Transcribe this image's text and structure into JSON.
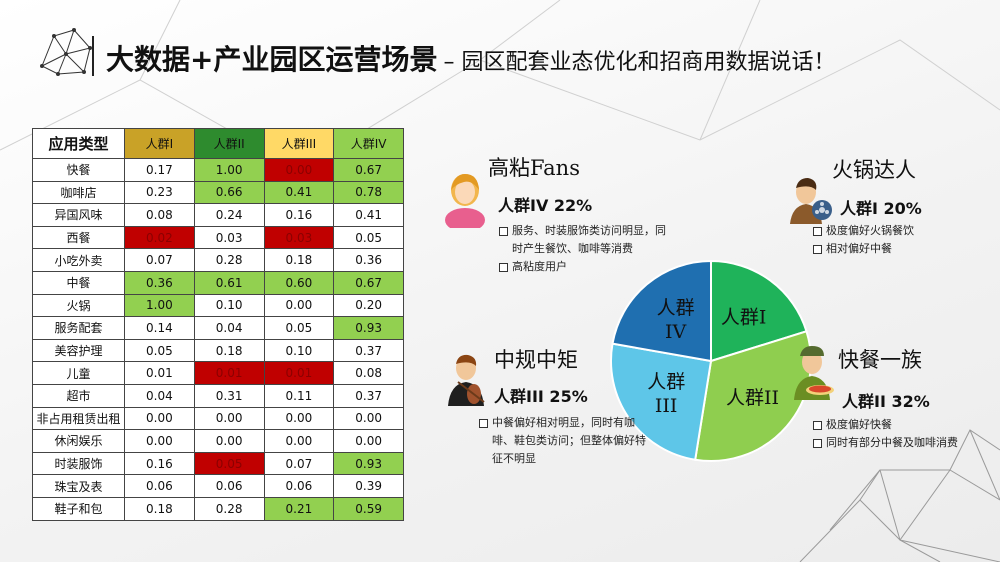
{
  "header": {
    "title": "大数据+产业园区运营场景",
    "subtitle": "– 园区配套业态优化和招商用数据说话！"
  },
  "colors": {
    "group1_header": "#c9a227",
    "group2_header": "#2e8b2e",
    "group3_header": "#ffd966",
    "group4_header": "#92d050",
    "cell_red": "#c00000",
    "cell_green": "#92d050",
    "pie_group1": "#1fb35a",
    "pie_group2": "#8fce4f",
    "pie_group3": "#5ec6e8",
    "pie_group4": "#1f6fb0"
  },
  "table": {
    "type_header": "应用类型",
    "column_headers": [
      "人群I",
      "人群II",
      "人群III",
      "人群IV"
    ],
    "rows": [
      {
        "label": "快餐",
        "values": [
          "0.17",
          "1.00",
          "0.00",
          "0.67"
        ],
        "highlights": [
          "none",
          "green",
          "red",
          "green"
        ]
      },
      {
        "label": "咖啡店",
        "values": [
          "0.23",
          "0.66",
          "0.41",
          "0.78"
        ],
        "highlights": [
          "none",
          "green",
          "green",
          "green"
        ]
      },
      {
        "label": "异国风味",
        "values": [
          "0.08",
          "0.24",
          "0.16",
          "0.41"
        ],
        "highlights": [
          "none",
          "none",
          "none",
          "none"
        ]
      },
      {
        "label": "西餐",
        "values": [
          "0.02",
          "0.03",
          "0.03",
          "0.05"
        ],
        "highlights": [
          "red",
          "none",
          "red",
          "none"
        ]
      },
      {
        "label": "小吃外卖",
        "values": [
          "0.07",
          "0.28",
          "0.18",
          "0.36"
        ],
        "highlights": [
          "none",
          "none",
          "none",
          "none"
        ]
      },
      {
        "label": "中餐",
        "values": [
          "0.36",
          "0.61",
          "0.60",
          "0.67"
        ],
        "highlights": [
          "green",
          "green",
          "green",
          "green"
        ]
      },
      {
        "label": "火锅",
        "values": [
          "1.00",
          "0.10",
          "0.00",
          "0.20"
        ],
        "highlights": [
          "green",
          "none",
          "none",
          "none"
        ]
      },
      {
        "label": "服务配套",
        "values": [
          "0.14",
          "0.04",
          "0.05",
          "0.93"
        ],
        "highlights": [
          "none",
          "none",
          "none",
          "green"
        ]
      },
      {
        "label": "美容护理",
        "values": [
          "0.05",
          "0.18",
          "0.10",
          "0.37"
        ],
        "highlights": [
          "none",
          "none",
          "none",
          "none"
        ]
      },
      {
        "label": "儿童",
        "values": [
          "0.01",
          "0.01",
          "0.01",
          "0.08"
        ],
        "highlights": [
          "none",
          "red",
          "red",
          "none"
        ]
      },
      {
        "label": "超市",
        "values": [
          "0.04",
          "0.31",
          "0.11",
          "0.37"
        ],
        "highlights": [
          "none",
          "none",
          "none",
          "none"
        ]
      },
      {
        "label": "非占用租赁出租",
        "values": [
          "0.00",
          "0.00",
          "0.00",
          "0.00"
        ],
        "highlights": [
          "none",
          "none",
          "none",
          "none"
        ]
      },
      {
        "label": "休闲娱乐",
        "values": [
          "0.00",
          "0.00",
          "0.00",
          "0.00"
        ],
        "highlights": [
          "none",
          "none",
          "none",
          "none"
        ]
      },
      {
        "label": "时装服饰",
        "values": [
          "0.16",
          "0.05",
          "0.07",
          "0.93"
        ],
        "highlights": [
          "none",
          "red",
          "none",
          "green"
        ]
      },
      {
        "label": "珠宝及表",
        "values": [
          "0.06",
          "0.06",
          "0.06",
          "0.39"
        ],
        "highlights": [
          "none",
          "none",
          "none",
          "none"
        ]
      },
      {
        "label": "鞋子和包",
        "values": [
          "0.18",
          "0.28",
          "0.21",
          "0.59"
        ],
        "highlights": [
          "none",
          "none",
          "green",
          "green"
        ]
      }
    ]
  },
  "chart_data": {
    "type": "pie",
    "categories": [
      "人群I",
      "人群II",
      "人群III",
      "人群IV"
    ],
    "values": [
      20,
      32,
      25,
      22
    ],
    "slice_labels": [
      [
        "人群I"
      ],
      [
        "人群II"
      ],
      [
        "人群",
        "III"
      ],
      [
        "人群",
        "IV"
      ]
    ]
  },
  "personas": {
    "hotpot": {
      "name": "火锅达人",
      "group_line": "人群I  20%",
      "bullets": [
        "极度偏好火锅餐饮",
        "相对偏好中餐"
      ]
    },
    "fastfood": {
      "name": "快餐一族",
      "group_line": "人群II  32%",
      "bullets": [
        "极度偏好快餐",
        "同时有部分中餐及咖啡消费"
      ]
    },
    "moderate": {
      "name": "中规中矩",
      "group_line": "人群III  25%",
      "bullets": [
        "中餐偏好相对明显，同时有咖啡、鞋包类访问；但整体偏好特征不明显"
      ]
    },
    "fans": {
      "name": "高粘Fans",
      "group_line": "人群IV  22%",
      "bullets": [
        "服务、时装服饰类访问明显，同时产生餐饮、咖啡等消费",
        "高粘度用户"
      ]
    }
  },
  "icons": {
    "logo": "polygon-network-logo",
    "fans": "woman-avatar-icon",
    "hotpot": "man-film-reel-icon",
    "moderate": "violinist-icon",
    "fastfood": "delivery-man-pizza-icon"
  }
}
